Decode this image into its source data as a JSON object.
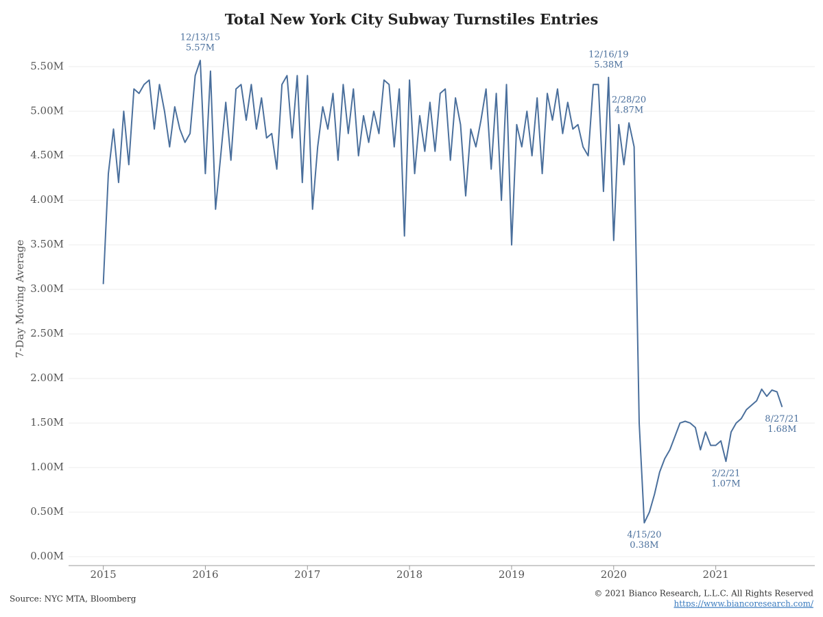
{
  "chart_data": {
    "type": "line",
    "title": "Total New York City Subway Turnstiles Entries",
    "y_label": "7-Day Moving Average",
    "source": "Source: NYC MTA, Bloomberg",
    "copyright": "© 2021 Bianco Research, L.L.C. All Rights Reserved",
    "url": "https://www.biancoresearch.com/",
    "grid": true,
    "x": [
      2015.0,
      2015.05,
      2015.1,
      2015.15,
      2015.2,
      2015.25,
      2015.3,
      2015.35,
      2015.4,
      2015.45,
      2015.5,
      2015.55,
      2015.6,
      2015.65,
      2015.7,
      2015.75,
      2015.8,
      2015.85,
      2015.9,
      2015.95,
      2016.0,
      2016.05,
      2016.1,
      2016.15,
      2016.2,
      2016.25,
      2016.3,
      2016.35,
      2016.4,
      2016.45,
      2016.5,
      2016.55,
      2016.6,
      2016.65,
      2016.7,
      2016.75,
      2016.8,
      2016.85,
      2016.9,
      2016.95,
      2017.0,
      2017.05,
      2017.1,
      2017.15,
      2017.2,
      2017.25,
      2017.3,
      2017.35,
      2017.4,
      2017.45,
      2017.5,
      2017.55,
      2017.6,
      2017.65,
      2017.7,
      2017.75,
      2017.8,
      2017.85,
      2017.9,
      2017.95,
      2018.0,
      2018.05,
      2018.1,
      2018.15,
      2018.2,
      2018.25,
      2018.3,
      2018.35,
      2018.4,
      2018.45,
      2018.5,
      2018.55,
      2018.6,
      2018.65,
      2018.7,
      2018.75,
      2018.8,
      2018.85,
      2018.9,
      2018.95,
      2019.0,
      2019.05,
      2019.1,
      2019.15,
      2019.2,
      2019.25,
      2019.3,
      2019.35,
      2019.4,
      2019.45,
      2019.5,
      2019.55,
      2019.6,
      2019.65,
      2019.7,
      2019.75,
      2019.8,
      2019.85,
      2019.9,
      2019.95,
      2020.0,
      2020.05,
      2020.1,
      2020.15,
      2020.2,
      2020.25,
      2020.3,
      2020.35,
      2020.4,
      2020.45,
      2020.5,
      2020.55,
      2020.6,
      2020.65,
      2020.7,
      2020.75,
      2020.8,
      2020.85,
      2020.9,
      2020.95,
      2021.0,
      2021.05,
      2021.1,
      2021.15,
      2021.2,
      2021.25,
      2021.3,
      2021.35,
      2021.4,
      2021.45,
      2021.5,
      2021.55,
      2021.6,
      2021.65
    ],
    "series": [
      {
        "name": "Total New York City Subway Turnstiles Entries",
        "color": "#4a6f9c",
        "values": [
          3060000.0,
          4300000.0,
          4800000.0,
          4200000.0,
          5000000.0,
          4400000.0,
          5250000.0,
          5200000.0,
          5300000.0,
          5350000.0,
          4800000.0,
          5300000.0,
          5000000.0,
          4600000.0,
          5050000.0,
          4800000.0,
          4650000.0,
          4750000.0,
          5400000.0,
          5570000.0,
          4300000.0,
          5450000.0,
          3900000.0,
          4500000.0,
          5100000.0,
          4450000.0,
          5250000.0,
          5300000.0,
          4900000.0,
          5300000.0,
          4800000.0,
          5150000.0,
          4700000.0,
          4750000.0,
          4350000.0,
          5300000.0,
          5400000.0,
          4700000.0,
          5400000.0,
          4200000.0,
          5400000.0,
          3900000.0,
          4600000.0,
          5050000.0,
          4800000.0,
          5200000.0,
          4450000.0,
          5300000.0,
          4750000.0,
          5250000.0,
          4500000.0,
          4950000.0,
          4650000.0,
          5000000.0,
          4750000.0,
          5350000.0,
          5300000.0,
          4600000.0,
          5250000.0,
          3600000.0,
          5350000.0,
          4300000.0,
          4950000.0,
          4550000.0,
          5100000.0,
          4550000.0,
          5200000.0,
          5250000.0,
          4450000.0,
          5150000.0,
          4850000.0,
          4050000.0,
          4800000.0,
          4600000.0,
          4900000.0,
          5250000.0,
          4350000.0,
          5200000.0,
          4000000.0,
          5300000.0,
          3500000.0,
          4850000.0,
          4600000.0,
          5000000.0,
          4500000.0,
          5150000.0,
          4300000.0,
          5200000.0,
          4900000.0,
          5250000.0,
          4750000.0,
          5100000.0,
          4800000.0,
          4850000.0,
          4600000.0,
          4500000.0,
          5300000.0,
          5300000.0,
          4100000.0,
          5380000.0,
          3550000.0,
          4850000.0,
          4400000.0,
          4870000.0,
          4600000.0,
          1500000.0,
          380000.0,
          500000.0,
          700000.0,
          950000.0,
          1100000.0,
          1200000.0,
          1350000.0,
          1500000.0,
          1520000.0,
          1500000.0,
          1450000.0,
          1200000.0,
          1400000.0,
          1250000.0,
          1250000.0,
          1300000.0,
          1070000.0,
          1400000.0,
          1500000.0,
          1550000.0,
          1650000.0,
          1700000.0,
          1750000.0,
          1880000.0,
          1800000.0,
          1870000.0,
          1850000.0,
          1680000.0
        ]
      }
    ],
    "annotations": [
      {
        "date": "12/13/15",
        "label": "5.57M",
        "x": 2015.95,
        "value": 5570000
      },
      {
        "date": "12/16/19",
        "label": "5.38M",
        "x": 2019.95,
        "value": 5380000
      },
      {
        "date": "2/28/20",
        "label": "4.87M",
        "x": 2020.15,
        "value": 4870000
      },
      {
        "date": "4/15/20",
        "label": "0.38M",
        "x": 2020.3,
        "value": 380000
      },
      {
        "date": "2/2/21",
        "label": "1.07M",
        "x": 2021.1,
        "value": 1070000
      },
      {
        "date": "8/27/21",
        "label": "1.68M",
        "x": 2021.65,
        "value": 1680000
      }
    ],
    "xlim": [
      2014.66,
      2021.97
    ],
    "xticks": [
      2015,
      2016,
      2017,
      2018,
      2019,
      2020,
      2021
    ],
    "ylim": [
      -100000,
      5710000
    ],
    "yticks": [
      {
        "value": 0,
        "label": "0.00M"
      },
      {
        "value": 500000,
        "label": "0.50M"
      },
      {
        "value": 1000000,
        "label": "1.00M"
      },
      {
        "value": 1500000,
        "label": "1.50M"
      },
      {
        "value": 2000000,
        "label": "2.00M"
      },
      {
        "value": 2500000,
        "label": "2.50M"
      },
      {
        "value": 3000000,
        "label": "3.00M"
      },
      {
        "value": 3500000,
        "label": "3.50M"
      },
      {
        "value": 4000000,
        "label": "4.00M"
      },
      {
        "value": 4500000,
        "label": "4.50M"
      },
      {
        "value": 5000000,
        "label": "5.00M"
      },
      {
        "value": 5500000,
        "label": "5.50M"
      }
    ]
  }
}
